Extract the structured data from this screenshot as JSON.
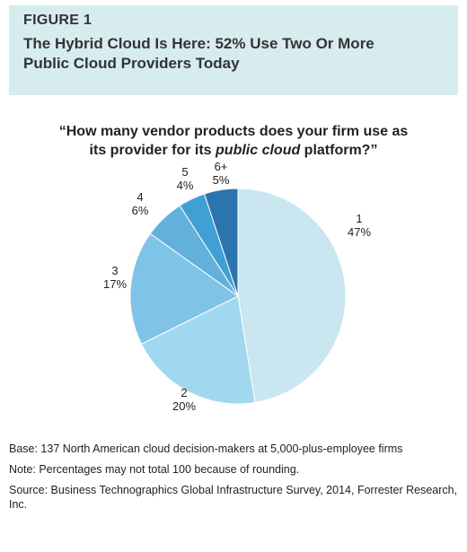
{
  "figure": {
    "label": "FIGURE 1",
    "title_line1": "The Hybrid Cloud Is Here: 52% Use Two Or More",
    "title_line2": "Public Cloud Providers Today"
  },
  "question": {
    "line1": "“How many vendor products does your firm use as",
    "line2_before": "its provider for its ",
    "line2_italic": "public cloud",
    "line2_after": " platform?”"
  },
  "chart_data": {
    "type": "pie",
    "categories": [
      "1",
      "2",
      "3",
      "4",
      "5",
      "6+"
    ],
    "values": [
      47,
      20,
      17,
      6,
      4,
      5
    ],
    "labels": [
      "47%",
      "20%",
      "17%",
      "6%",
      "4%",
      "5%"
    ],
    "colors": [
      "#c9e6f1",
      "#a0d8ef",
      "#7fc3e6",
      "#62b1dd",
      "#409fd4",
      "#2c74ad"
    ],
    "start": "12 o'clock",
    "direction": "clockwise"
  },
  "notes": {
    "base": "Base: 137 North American cloud decision-makers at 5,000-plus-employee firms",
    "note": "Note: Percentages may not total 100 because of rounding.",
    "source": "Source: Business Technographics Global Infrastructure Survey, 2014, Forrester Research, Inc."
  }
}
